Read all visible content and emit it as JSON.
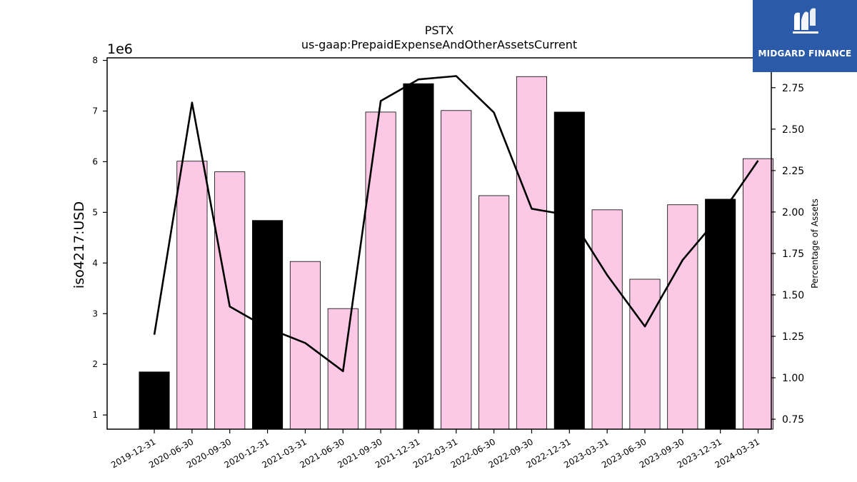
{
  "chart_data": {
    "type": "bar",
    "title": "PSTX",
    "subtitle": "us-gaap:PrepaidExpenseAndOtherAssetsCurrent",
    "ylabel": "iso4217:USD",
    "y_multiplier": "1e6",
    "y2label": "Percentage of Assets",
    "categories": [
      "2019-12-31",
      "2020-06-30",
      "2020-09-30",
      "2020-12-31",
      "2021-03-31",
      "2021-06-30",
      "2021-09-30",
      "2021-12-31",
      "2022-03-31",
      "2022-06-30",
      "2022-09-30",
      "2022-12-31",
      "2023-03-31",
      "2023-06-30",
      "2023-09-30",
      "2023-12-31",
      "2024-03-31"
    ],
    "values": [
      1.85,
      6.01,
      5.8,
      4.84,
      4.03,
      3.1,
      6.98,
      7.54,
      7.01,
      5.33,
      7.68,
      6.98,
      5.05,
      3.68,
      5.15,
      5.26,
      6.06
    ],
    "bar_colors": [
      "#000000",
      "#fbc9e5",
      "#fbc9e5",
      "#000000",
      "#fbc9e5",
      "#fbc9e5",
      "#fbc9e5",
      "#000000",
      "#fbc9e5",
      "#fbc9e5",
      "#fbc9e5",
      "#000000",
      "#fbc9e5",
      "#fbc9e5",
      "#fbc9e5",
      "#000000",
      "#fbc9e5"
    ],
    "line_values": [
      1.26,
      2.66,
      1.43,
      1.3,
      1.21,
      1.04,
      2.67,
      2.8,
      2.82,
      2.6,
      2.02,
      1.98,
      1.62,
      1.31,
      1.71,
      1.98,
      2.31
    ],
    "ylim": [
      0.72,
      8.05
    ],
    "yticks": [
      1,
      2,
      3,
      4,
      5,
      6,
      7,
      8
    ],
    "y2lim": [
      0.69,
      2.93
    ],
    "y2ticks": [
      "0.75",
      "1.00",
      "1.25",
      "1.50",
      "1.75",
      "2.00",
      "2.25",
      "2.50",
      "2.75"
    ],
    "grid": false,
    "legend": "none",
    "line_color": "#000000",
    "bar_edge_color": "#000000"
  },
  "logo": {
    "text": "MIDGARD FINANCE",
    "background": "#2b5aa8"
  }
}
